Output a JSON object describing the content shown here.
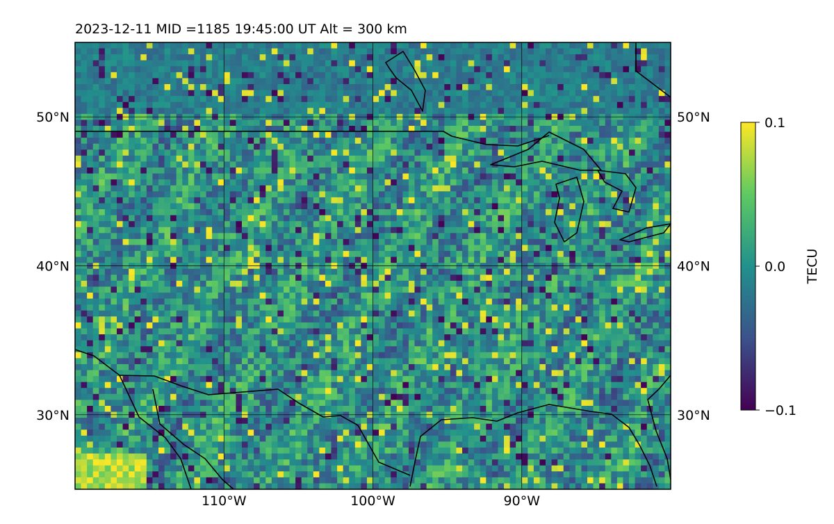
{
  "title": "2023-12-11  MID =1185    19:45:00  UT  Alt = 300 km",
  "map": {
    "lon_range": [
      -120,
      -80
    ],
    "lat_range": [
      25,
      55
    ],
    "lat_ticks": [
      {
        "value": 50,
        "label": "50°N"
      },
      {
        "value": 40,
        "label": "40°N"
      },
      {
        "value": 30,
        "label": "30°N"
      }
    ],
    "lon_ticks": [
      {
        "value": -110,
        "label": "110°W"
      },
      {
        "value": -100,
        "label": "100°W"
      },
      {
        "value": -90,
        "label": "90°W"
      }
    ],
    "gridlines": true
  },
  "colorbar": {
    "label": "TECU",
    "ticks": [
      {
        "value": 0.1,
        "label": "0.1"
      },
      {
        "value": 0.0,
        "label": "0.0"
      },
      {
        "value": -0.1,
        "label": "−0.1"
      }
    ],
    "range": [
      -0.1,
      0.1
    ],
    "colormap": "viridis",
    "stops": [
      "#440154",
      "#3b528b",
      "#21918c",
      "#5ec962",
      "#fde725"
    ]
  },
  "chart_data": {
    "type": "heatmap",
    "variable": "TECU",
    "value_range": [
      -0.1,
      0.1
    ],
    "grid": {
      "lon_step": 0.4,
      "lat_step": 0.4,
      "ncols": 100,
      "nrows": 75
    },
    "features": {
      "coastline_color": "#000000",
      "borders": [
        "US-Canada",
        "US-Mexico",
        "Great Lakes",
        "Gulf of Mexico coast",
        "Gulf of California"
      ]
    }
  }
}
